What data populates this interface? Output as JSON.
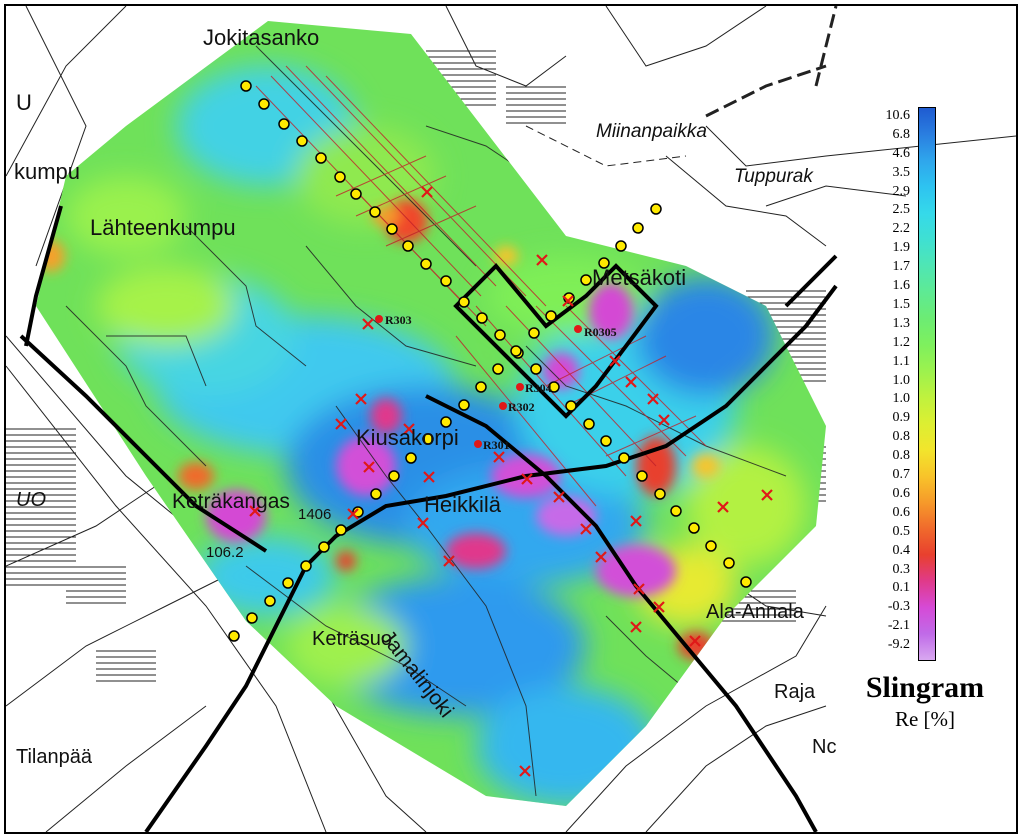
{
  "places": [
    {
      "name": "Jokitasanko",
      "italic": false
    },
    {
      "name": "U",
      "italic": false
    },
    {
      "name": "kumpu",
      "italic": false
    },
    {
      "name": "Lähteenkumpu",
      "italic": false
    },
    {
      "name": "Miinanpaikka",
      "italic": true
    },
    {
      "name": "Tuppurak",
      "italic": true
    },
    {
      "name": "Metsäkoti",
      "italic": false
    },
    {
      "name": "Kiusakorpi",
      "italic": false
    },
    {
      "name": "UO",
      "italic": true
    },
    {
      "name": "Keträkangas",
      "italic": false
    },
    {
      "name": "Heikkilä",
      "italic": false
    },
    {
      "name": "1406",
      "italic": false
    },
    {
      "name": "106.2",
      "italic": false
    },
    {
      "name": "Jamalinjoki",
      "italic": false
    },
    {
      "name": "Keträsuo",
      "italic": false
    },
    {
      "name": "Ala-Annala",
      "italic": false
    },
    {
      "name": "Raja",
      "italic": false
    },
    {
      "name": "Nc",
      "italic": false
    },
    {
      "name": "Tilanpää",
      "italic": false
    }
  ],
  "samples": [
    {
      "label": "R303"
    },
    {
      "label": "R0305"
    },
    {
      "label": "R302"
    },
    {
      "label": "R301"
    },
    {
      "label": "R304"
    }
  ],
  "legend": {
    "title": "Slingram",
    "unit": "Re [%]",
    "ticks": [
      "10.6",
      "6.8",
      "4.6",
      "3.5",
      "2.9",
      "2.5",
      "2.2",
      "1.9",
      "1.7",
      "1.6",
      "1.5",
      "1.3",
      "1.2",
      "1.1",
      "1.0",
      "1.0",
      "0.9",
      "0.8",
      "0.8",
      "0.7",
      "0.6",
      "0.6",
      "0.5",
      "0.4",
      "0.3",
      "0.1",
      "-0.3",
      "-2.1",
      "-9.2"
    ],
    "colors": [
      "#1f5bd0",
      "#2a7ee0",
      "#2fa6ec",
      "#2ec3f0",
      "#35d9ea",
      "#3fe0d2",
      "#4fe6b4",
      "#5eea94",
      "#6cec74",
      "#7ef05e",
      "#9cf24e",
      "#bff23e",
      "#dcef32",
      "#f2e52c",
      "#f8c42a",
      "#f69a2a",
      "#f06a2c",
      "#e8402e",
      "#e03a8a",
      "#d64ad6",
      "#c06ae8",
      "#d8a8f0"
    ]
  }
}
